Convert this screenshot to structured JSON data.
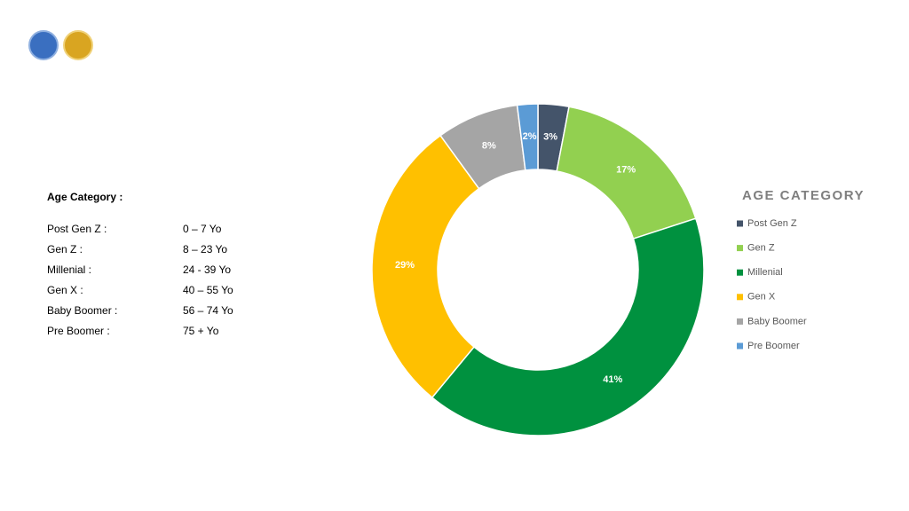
{
  "age_table": {
    "title": "Age Category :",
    "rows": [
      [
        "Post Gen Z :",
        "0 – 7 Yo"
      ],
      [
        "Gen Z :",
        "8 – 23 Yo"
      ],
      [
        "Millenial :",
        "24 - 39 Yo"
      ],
      [
        "Gen X :",
        "40 – 55 Yo"
      ],
      [
        "Baby Boomer :",
        "56 – 74 Yo"
      ],
      [
        "Pre Boomer :",
        "75 + Yo"
      ]
    ]
  },
  "chart_data": {
    "type": "donut",
    "title": "AGE CATEGORY",
    "categories": [
      "Post Gen Z",
      "Gen Z",
      "Millenial",
      "Gen X",
      "Baby Boomer",
      "Pre Boomer"
    ],
    "values": [
      3,
      17,
      41,
      29,
      8,
      2
    ],
    "value_labels": [
      "3%",
      "17%",
      "41%",
      "29%",
      "8%",
      "2%"
    ],
    "colors": [
      "#44546a",
      "#92d050",
      "#00913f",
      "#ffc000",
      "#a5a5a5",
      "#5b9bd5"
    ]
  }
}
